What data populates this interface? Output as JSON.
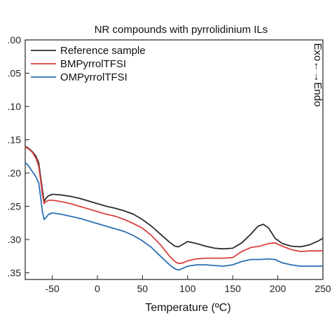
{
  "chart_data": {
    "type": "line",
    "title": "NR compounds with pyrrolidinium ILs",
    "xlabel": "Temperature (ºC)",
    "ylabel": "",
    "side_label": "Exo←→Endo",
    "xlim": [
      -80,
      250
    ],
    "ylim": [
      0.0,
      0.36
    ],
    "y_reversed": true,
    "grid": false,
    "legend_position": "top-left",
    "x_ticks": [
      -50,
      0,
      50,
      100,
      150,
      200,
      250
    ],
    "x_tick_labels": [
      "-50",
      "0",
      "50",
      "100",
      "150",
      "200",
      "250"
    ],
    "y_ticks": [
      0.0,
      0.05,
      0.1,
      0.15,
      0.2,
      0.25,
      0.3,
      0.35
    ],
    "y_tick_labels": [
      ".00",
      ".05",
      ".10",
      ".15",
      ".20",
      ".25",
      ".30",
      ".35"
    ],
    "series": [
      {
        "name": "Reference sample",
        "color": "#2b2b2b",
        "points": [
          [
            -80,
            0.16
          ],
          [
            -76,
            0.163
          ],
          [
            -72,
            0.168
          ],
          [
            -68,
            0.175
          ],
          [
            -65,
            0.185
          ],
          [
            -63,
            0.205
          ],
          [
            -61,
            0.225
          ],
          [
            -59,
            0.243
          ],
          [
            -57,
            0.238
          ],
          [
            -54,
            0.234
          ],
          [
            -50,
            0.232
          ],
          [
            -40,
            0.233
          ],
          [
            -30,
            0.235
          ],
          [
            -20,
            0.238
          ],
          [
            -10,
            0.242
          ],
          [
            0,
            0.246
          ],
          [
            10,
            0.25
          ],
          [
            20,
            0.253
          ],
          [
            30,
            0.257
          ],
          [
            40,
            0.262
          ],
          [
            50,
            0.27
          ],
          [
            60,
            0.28
          ],
          [
            70,
            0.292
          ],
          [
            80,
            0.304
          ],
          [
            86,
            0.31
          ],
          [
            90,
            0.311
          ],
          [
            95,
            0.307
          ],
          [
            100,
            0.303
          ],
          [
            110,
            0.306
          ],
          [
            120,
            0.31
          ],
          [
            130,
            0.313
          ],
          [
            140,
            0.314
          ],
          [
            150,
            0.313
          ],
          [
            160,
            0.305
          ],
          [
            170,
            0.292
          ],
          [
            178,
            0.28
          ],
          [
            184,
            0.277
          ],
          [
            190,
            0.283
          ],
          [
            197,
            0.298
          ],
          [
            205,
            0.306
          ],
          [
            215,
            0.31
          ],
          [
            225,
            0.311
          ],
          [
            235,
            0.308
          ],
          [
            245,
            0.302
          ],
          [
            250,
            0.298
          ]
        ]
      },
      {
        "name": "BMPyrrolTFSI",
        "color": "#d9413f",
        "points": [
          [
            -80,
            0.161
          ],
          [
            -76,
            0.164
          ],
          [
            -72,
            0.169
          ],
          [
            -68,
            0.178
          ],
          [
            -65,
            0.19
          ],
          [
            -63,
            0.21
          ],
          [
            -61,
            0.232
          ],
          [
            -59,
            0.246
          ],
          [
            -57,
            0.243
          ],
          [
            -54,
            0.241
          ],
          [
            -50,
            0.241
          ],
          [
            -40,
            0.243
          ],
          [
            -30,
            0.246
          ],
          [
            -20,
            0.25
          ],
          [
            -10,
            0.254
          ],
          [
            0,
            0.258
          ],
          [
            10,
            0.262
          ],
          [
            20,
            0.265
          ],
          [
            30,
            0.27
          ],
          [
            40,
            0.276
          ],
          [
            50,
            0.283
          ],
          [
            60,
            0.294
          ],
          [
            70,
            0.308
          ],
          [
            80,
            0.325
          ],
          [
            86,
            0.333
          ],
          [
            90,
            0.336
          ],
          [
            95,
            0.335
          ],
          [
            100,
            0.332
          ],
          [
            110,
            0.329
          ],
          [
            120,
            0.328
          ],
          [
            130,
            0.328
          ],
          [
            140,
            0.328
          ],
          [
            150,
            0.327
          ],
          [
            160,
            0.318
          ],
          [
            170,
            0.312
          ],
          [
            180,
            0.31
          ],
          [
            190,
            0.306
          ],
          [
            197,
            0.305
          ],
          [
            205,
            0.31
          ],
          [
            215,
            0.315
          ],
          [
            225,
            0.318
          ],
          [
            235,
            0.317
          ],
          [
            245,
            0.317
          ],
          [
            250,
            0.317
          ]
        ]
      },
      {
        "name": "OMPyrrolTFSI",
        "color": "#2a6fb5",
        "points": [
          [
            -80,
            0.184
          ],
          [
            -76,
            0.19
          ],
          [
            -72,
            0.198
          ],
          [
            -68,
            0.206
          ],
          [
            -65,
            0.215
          ],
          [
            -63,
            0.235
          ],
          [
            -61,
            0.258
          ],
          [
            -59,
            0.27
          ],
          [
            -57,
            0.267
          ],
          [
            -54,
            0.262
          ],
          [
            -50,
            0.26
          ],
          [
            -40,
            0.262
          ],
          [
            -30,
            0.265
          ],
          [
            -20,
            0.268
          ],
          [
            -10,
            0.272
          ],
          [
            0,
            0.276
          ],
          [
            10,
            0.28
          ],
          [
            20,
            0.284
          ],
          [
            30,
            0.288
          ],
          [
            40,
            0.294
          ],
          [
            50,
            0.302
          ],
          [
            60,
            0.312
          ],
          [
            70,
            0.325
          ],
          [
            80,
            0.338
          ],
          [
            86,
            0.344
          ],
          [
            90,
            0.346
          ],
          [
            95,
            0.343
          ],
          [
            100,
            0.34
          ],
          [
            110,
            0.338
          ],
          [
            120,
            0.338
          ],
          [
            130,
            0.339
          ],
          [
            140,
            0.34
          ],
          [
            150,
            0.338
          ],
          [
            160,
            0.333
          ],
          [
            170,
            0.33
          ],
          [
            180,
            0.33
          ],
          [
            190,
            0.329
          ],
          [
            197,
            0.33
          ],
          [
            205,
            0.335
          ],
          [
            215,
            0.338
          ],
          [
            225,
            0.34
          ],
          [
            235,
            0.34
          ],
          [
            245,
            0.34
          ],
          [
            250,
            0.34
          ]
        ]
      }
    ]
  }
}
